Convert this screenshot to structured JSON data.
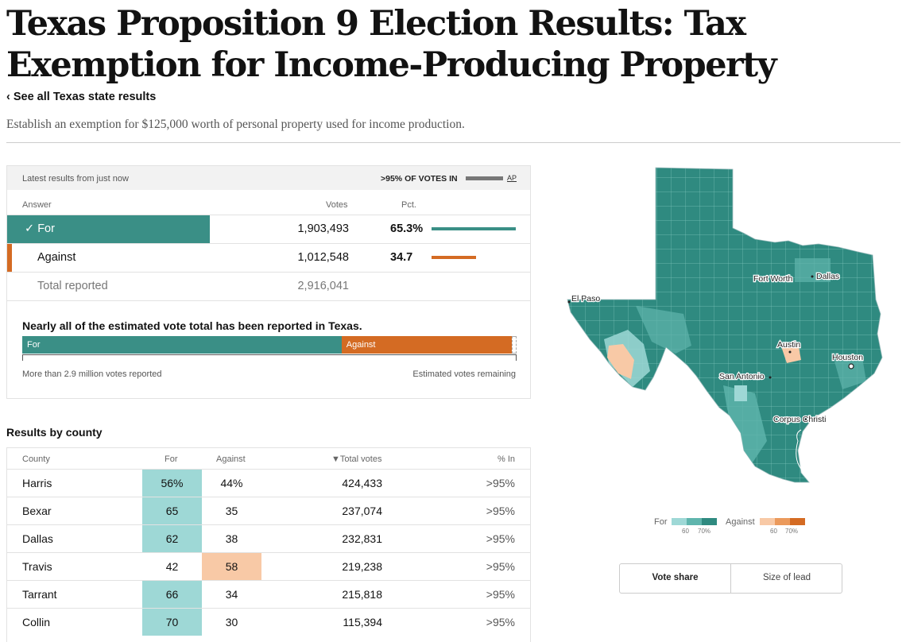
{
  "header": {
    "title": "Texas Proposition 9 Election Results: Tax Exemption for Income-Producing Property",
    "back_link": "‹ See all Texas state results",
    "subtitle": "Establish an exemption for $125,000 worth of personal property used for income production."
  },
  "results": {
    "latest": "Latest results from just now",
    "votes_in": ">95% OF VOTES IN",
    "source": "AP",
    "columns": {
      "answer": "Answer",
      "votes": "Votes",
      "pct": "Pct."
    },
    "rows": [
      {
        "answer": "For",
        "check": "✓",
        "votes": "1,903,493",
        "pct": "65.3%",
        "pct_value": 65.3,
        "color": "#3a8f86"
      },
      {
        "answer": "Against",
        "votes": "1,012,548",
        "pct": "34.7",
        "pct_value": 34.7,
        "color": "#d46b23"
      }
    ],
    "total": {
      "label": "Total reported",
      "votes": "2,916,041"
    }
  },
  "estimate": {
    "heading": "Nearly all of the estimated vote total has been reported in Texas.",
    "for_label": "For",
    "against_label": "Against",
    "for_share": 64.6,
    "against_share": 34.4,
    "remaining_share": 1.0,
    "reported_note": "More than 2.9 million votes reported",
    "remaining_note": "Estimated votes remaining"
  },
  "county": {
    "heading": "Results by county",
    "columns": {
      "county": "County",
      "for": "For",
      "against": "Against",
      "total": "▼Total votes",
      "pct_in": "% In"
    },
    "rows": [
      {
        "name": "Harris",
        "for": "56%",
        "against": "44%",
        "total": "424,433",
        "in": ">95%",
        "winner": "for",
        "tone": "#9ed8d6"
      },
      {
        "name": "Bexar",
        "for": "65",
        "against": "35",
        "total": "237,074",
        "in": ">95%",
        "winner": "for",
        "tone": "#9ed8d6"
      },
      {
        "name": "Dallas",
        "for": "62",
        "against": "38",
        "total": "232,831",
        "in": ">95%",
        "winner": "for",
        "tone": "#9ed8d6"
      },
      {
        "name": "Travis",
        "for": "42",
        "against": "58",
        "total": "219,238",
        "in": ">95%",
        "winner": "against",
        "tone": "#f8c9a6"
      },
      {
        "name": "Tarrant",
        "for": "66",
        "against": "34",
        "total": "215,818",
        "in": ">95%",
        "winner": "for",
        "tone": "#9ed8d6"
      },
      {
        "name": "Collin",
        "for": "70",
        "against": "30",
        "total": "115,394",
        "in": ">95%",
        "winner": "for",
        "tone": "#9ed8d6"
      }
    ]
  },
  "map": {
    "cities": [
      "El Paso",
      "Fort Worth",
      "Dallas",
      "Austin",
      "Houston",
      "San Antonio",
      "Corpus Christi"
    ]
  },
  "legend": {
    "for_label": "For",
    "against_label": "Against",
    "for_colors": [
      "#9ed8d6",
      "#5fb5ad",
      "#2f8a80"
    ],
    "against_colors": [
      "#f8c9a6",
      "#eb9a5c",
      "#d46b23"
    ],
    "ticks": [
      "60",
      "70%"
    ]
  },
  "toggle": {
    "option1": "Vote share",
    "option2": "Size of lead"
  }
}
